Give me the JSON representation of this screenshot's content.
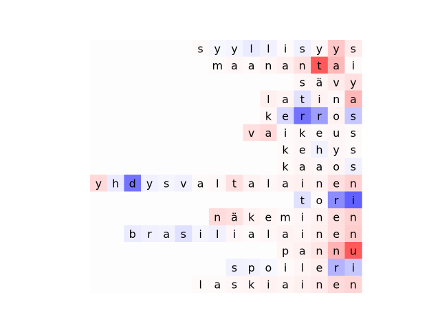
{
  "chart_data": {
    "type": "heatmap",
    "title": "",
    "xlabel": "",
    "ylabel": "",
    "colormap": "bwr",
    "value_range": [
      -1,
      1
    ],
    "alignment": "right",
    "columns": 16,
    "rows": [
      {
        "word": "syyllisyys",
        "values": [
          0.02,
          -0.03,
          -0.04,
          -0.08,
          -0.05,
          0.02,
          -0.06,
          0.03,
          0.22,
          0.08
        ]
      },
      {
        "word": "maanantai",
        "values": [
          0.02,
          0.03,
          0.02,
          0.04,
          0.06,
          0.12,
          0.65,
          0.28,
          0.02
        ]
      },
      {
        "word": "sävy",
        "values": [
          0.03,
          0.04,
          0.08,
          0.12
        ]
      },
      {
        "word": "latina",
        "values": [
          0.06,
          0.04,
          -0.12,
          0.05,
          0.03,
          0.28
        ]
      },
      {
        "word": "kerros",
        "values": [
          0.03,
          -0.15,
          -0.55,
          -0.38,
          0.05,
          -0.22
        ]
      },
      {
        "word": "vaikeus",
        "values": [
          0.12,
          0.15,
          0.02,
          0.03,
          0.02,
          0.03,
          0.02
        ]
      },
      {
        "word": "kehys",
        "values": [
          0.02,
          0.03,
          -0.05,
          0.03,
          0.02
        ]
      },
      {
        "word": "kaaos",
        "values": [
          0.02,
          0.04,
          0.03,
          0.04,
          -0.06
        ]
      },
      {
        "word": "yhdysvaltalainen",
        "values": [
          0.15,
          -0.08,
          -0.55,
          -0.06,
          -0.04,
          -0.06,
          0.02,
          0.03,
          0.12,
          0.05,
          0.03,
          0.05,
          0.06,
          0.05,
          0.12,
          0.18
        ]
      },
      {
        "word": "tori",
        "values": [
          -0.12,
          0.02,
          -0.45,
          -0.62
        ]
      },
      {
        "word": "näkeminen",
        "values": [
          0.14,
          0.12,
          0.05,
          0.04,
          0.02,
          0.03,
          0.05,
          0.12,
          0.18
        ]
      },
      {
        "word": "brasilialainen",
        "values": [
          -0.08,
          -0.06,
          -0.05,
          -0.12,
          -0.04,
          -0.06,
          0.03,
          0.02,
          0.03,
          0.05,
          0.04,
          0.06,
          0.12,
          0.2
        ]
      },
      {
        "word": "pannu",
        "values": [
          0.04,
          0.06,
          0.1,
          0.3,
          0.65
        ]
      },
      {
        "word": "spoileri",
        "values": [
          -0.06,
          -0.05,
          -0.03,
          0.02,
          0.04,
          0.06,
          -0.3,
          -0.22
        ]
      },
      {
        "word": "laskiainen",
        "values": [
          0.02,
          0.02,
          0.03,
          0.04,
          0.05,
          0.04,
          0.06,
          0.08,
          0.14,
          0.16
        ]
      }
    ]
  }
}
